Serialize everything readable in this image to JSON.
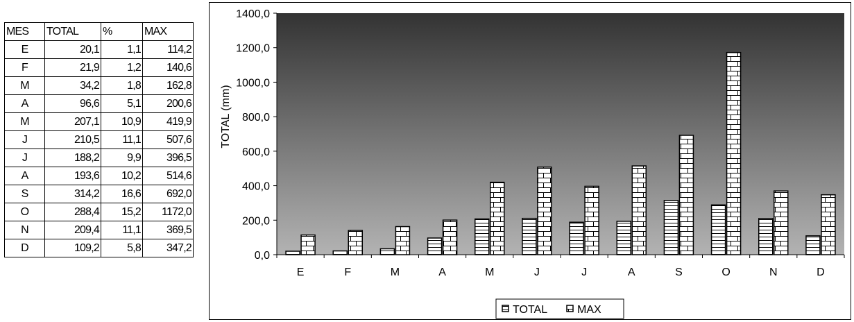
{
  "table": {
    "headers": [
      "MES",
      "TOTAL",
      "%",
      "MAX"
    ],
    "rows": [
      [
        "E",
        "20,1",
        "1,1",
        "114,2"
      ],
      [
        "F",
        "21,9",
        "1,2",
        "140,6"
      ],
      [
        "M",
        "34,2",
        "1,8",
        "162,8"
      ],
      [
        "A",
        "96,6",
        "5,1",
        "200,6"
      ],
      [
        "M",
        "207,1",
        "10,9",
        "419,9"
      ],
      [
        "J",
        "210,5",
        "11,1",
        "507,6"
      ],
      [
        "J",
        "188,2",
        "9,9",
        "396,5"
      ],
      [
        "A",
        "193,6",
        "10,2",
        "514,6"
      ],
      [
        "S",
        "314,2",
        "16,6",
        "692,0"
      ],
      [
        "O",
        "288,4",
        "15,2",
        "1172,0"
      ],
      [
        "N",
        "209,4",
        "11,1",
        "369,5"
      ],
      [
        "D",
        "109,2",
        "5,8",
        "347,2"
      ]
    ]
  },
  "chart_data": {
    "type": "bar",
    "categories": [
      "E",
      "F",
      "M",
      "A",
      "M",
      "J",
      "J",
      "A",
      "S",
      "O",
      "N",
      "D"
    ],
    "series": [
      {
        "name": "TOTAL",
        "values": [
          20.1,
          21.9,
          34.2,
          96.6,
          207.1,
          210.5,
          188.2,
          193.6,
          314.2,
          288.4,
          209.4,
          109.2
        ]
      },
      {
        "name": "MAX",
        "values": [
          114.2,
          140.6,
          162.8,
          200.6,
          419.9,
          507.6,
          396.5,
          514.6,
          692.0,
          1172.0,
          369.5,
          347.2
        ]
      }
    ],
    "ylabel": "TOTAL (mm)",
    "xlabel": "",
    "ylim": [
      0,
      1400
    ],
    "yticks": [
      "0,0",
      "200,0",
      "400,0",
      "600,0",
      "800,0",
      "1000,0",
      "1200,0",
      "1400,0"
    ],
    "legend_position": "bottom",
    "plot_background": "dark-gray gradient",
    "gradient_top": "#333333",
    "gradient_bottom": "#b3b3b3"
  }
}
